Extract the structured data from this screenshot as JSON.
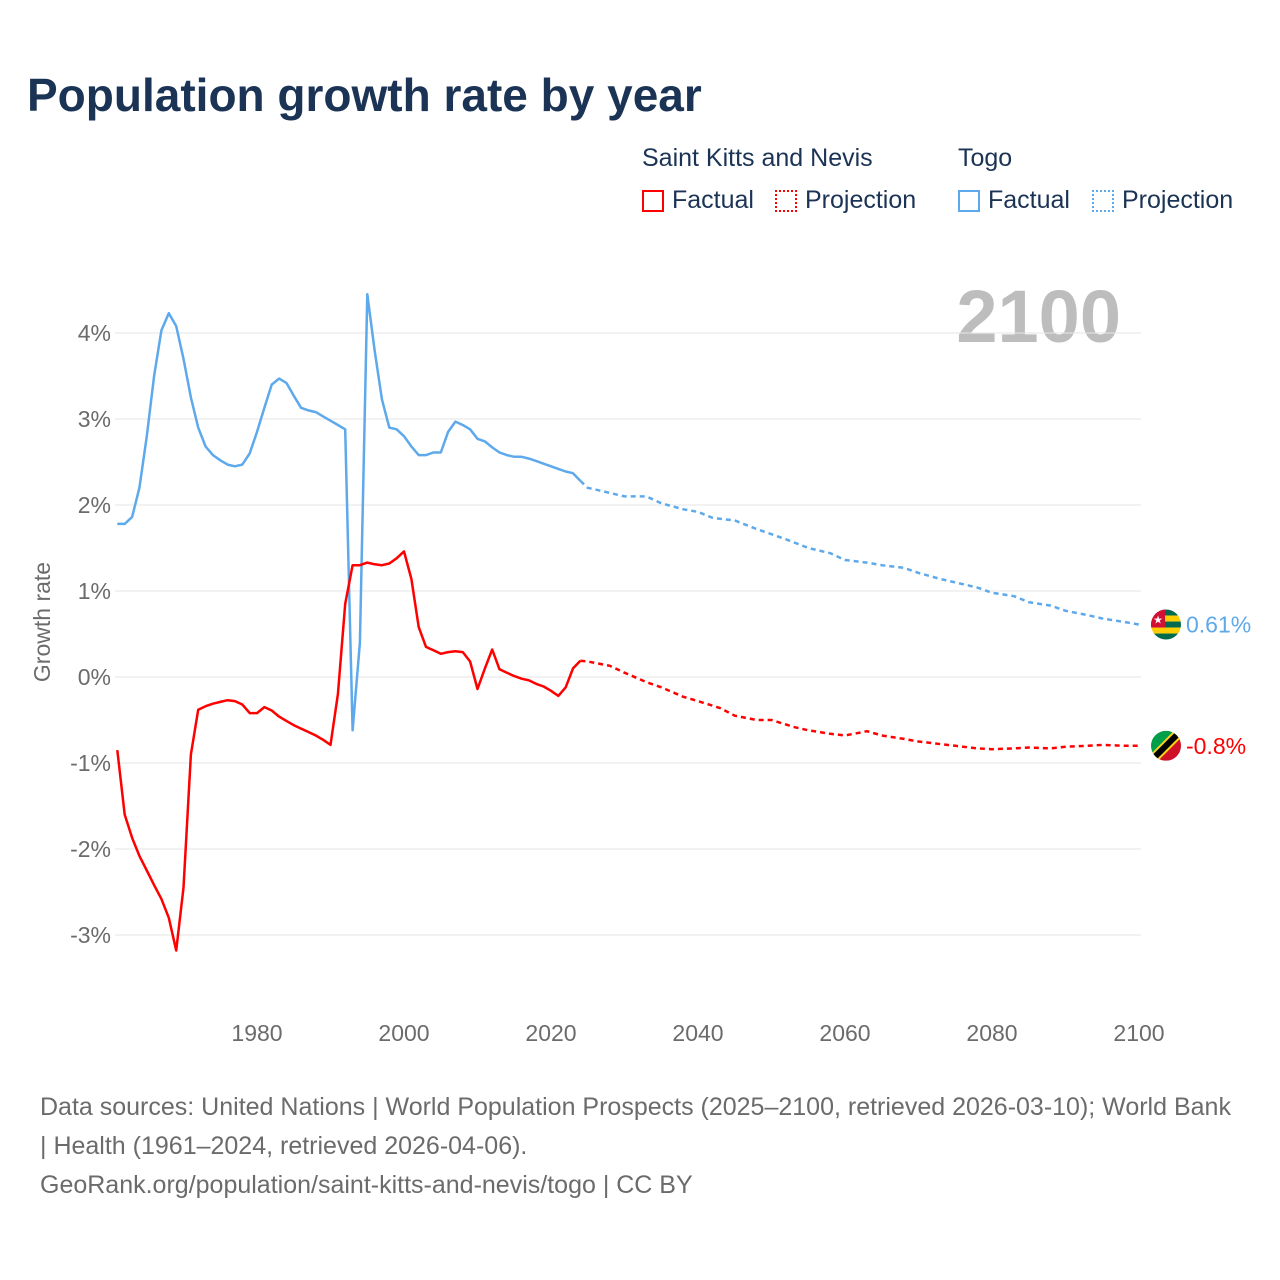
{
  "title": "Population growth rate by year",
  "legend": {
    "groups": [
      {
        "name": "Saint Kitts and Nevis",
        "color": "#ff0000",
        "factual": "Factual",
        "projection": "Projection"
      },
      {
        "name": "Togo",
        "color": "#5ea9eb",
        "factual": "Factual",
        "projection": "Projection"
      }
    ]
  },
  "year_label": "2100",
  "footer": {
    "line1": "Data sources: United Nations | World Population Prospects (2025–2100, retrieved 2026-03-10); World Bank | Health (1961–2024, retrieved 2026-04-06).",
    "line2": "GeoRank.org/population/saint-kitts-and-nevis/togo | CC BY"
  },
  "chart_data": {
    "type": "line",
    "title": "Population growth rate by year",
    "xlabel": "",
    "ylabel": "Growth rate",
    "xlim": [
      1961,
      2100
    ],
    "ylim": [
      -3.6,
      4.6
    ],
    "x_ticks": [
      1980,
      2000,
      2020,
      2040,
      2060,
      2080,
      2100
    ],
    "y_ticks": [
      4,
      3,
      2,
      1,
      0,
      -1,
      -2,
      -3
    ],
    "y_tick_labels": [
      "4%",
      "3%",
      "2%",
      "1%",
      "0%",
      "-1%",
      "-2%",
      "-3%"
    ],
    "grid": true,
    "series": [
      {
        "name": "Togo",
        "color": "#5ea9eb",
        "end_label": "0.61%",
        "factual": {
          "start_year": 1961,
          "values": [
            1.78,
            1.78,
            1.86,
            2.2,
            2.8,
            3.5,
            4.03,
            4.23,
            4.08,
            3.7,
            3.25,
            2.9,
            2.68,
            2.58,
            2.52,
            2.47,
            2.45,
            2.47,
            2.6,
            2.85,
            3.13,
            3.4,
            3.47,
            3.42,
            3.27,
            3.13,
            3.1,
            3.08,
            3.03,
            2.98,
            2.93,
            2.88,
            -0.62,
            0.4,
            4.45,
            3.8,
            3.23,
            2.9,
            2.88,
            2.8,
            2.68,
            2.58,
            2.58,
            2.61,
            2.61,
            2.85,
            2.97,
            2.93,
            2.88,
            2.77,
            2.74,
            2.67,
            2.61,
            2.58,
            2.56,
            2.56,
            2.54,
            2.51,
            2.48,
            2.45,
            2.42,
            2.39,
            2.37,
            2.28
          ]
        },
        "projection": {
          "years": [
            2024,
            2025,
            2027,
            2030,
            2033,
            2035,
            2038,
            2040,
            2042,
            2045,
            2048,
            2050,
            2052,
            2055,
            2058,
            2060,
            2063,
            2065,
            2068,
            2070,
            2073,
            2075,
            2078,
            2080,
            2083,
            2085,
            2088,
            2090,
            2093,
            2095,
            2098,
            2100
          ],
          "values": [
            2.28,
            2.2,
            2.16,
            2.1,
            2.1,
            2.02,
            1.95,
            1.92,
            1.85,
            1.82,
            1.72,
            1.66,
            1.6,
            1.5,
            1.44,
            1.36,
            1.33,
            1.3,
            1.27,
            1.21,
            1.14,
            1.1,
            1.04,
            0.98,
            0.94,
            0.87,
            0.83,
            0.77,
            0.72,
            0.68,
            0.64,
            0.61
          ]
        }
      },
      {
        "name": "Saint Kitts and Nevis",
        "color": "#ff0000",
        "end_label": "-0.8%",
        "factual": {
          "start_year": 1961,
          "values": [
            -0.85,
            -1.6,
            -1.87,
            -2.08,
            -2.25,
            -2.42,
            -2.58,
            -2.8,
            -3.18,
            -2.45,
            -0.9,
            -0.38,
            -0.34,
            -0.31,
            -0.29,
            -0.27,
            -0.28,
            -0.32,
            -0.42,
            -0.42,
            -0.35,
            -0.39,
            -0.46,
            -0.51,
            -0.56,
            -0.6,
            -0.64,
            -0.68,
            -0.73,
            -0.79,
            -0.2,
            0.85,
            1.3,
            1.3,
            1.33,
            1.31,
            1.3,
            1.32,
            1.38,
            1.46,
            1.14,
            0.58,
            0.35,
            0.31,
            0.27,
            0.29,
            0.3,
            0.29,
            0.18,
            -0.14,
            0.1,
            0.32,
            0.09,
            0.05,
            0.01,
            -0.02,
            -0.04,
            -0.08,
            -0.11,
            -0.16,
            -0.22,
            -0.12,
            0.1,
            0.19
          ]
        },
        "projection": {
          "years": [
            2024,
            2025,
            2028,
            2030,
            2033,
            2035,
            2038,
            2040,
            2043,
            2045,
            2048,
            2050,
            2053,
            2055,
            2058,
            2060,
            2063,
            2065,
            2068,
            2070,
            2073,
            2075,
            2078,
            2080,
            2083,
            2085,
            2088,
            2090,
            2093,
            2095,
            2098,
            2100
          ],
          "values": [
            0.19,
            0.18,
            0.13,
            0.05,
            -0.06,
            -0.12,
            -0.23,
            -0.28,
            -0.36,
            -0.45,
            -0.5,
            -0.5,
            -0.58,
            -0.62,
            -0.66,
            -0.68,
            -0.63,
            -0.68,
            -0.72,
            -0.75,
            -0.78,
            -0.8,
            -0.83,
            -0.84,
            -0.83,
            -0.82,
            -0.83,
            -0.81,
            -0.8,
            -0.79,
            -0.8,
            -0.8
          ]
        }
      }
    ]
  }
}
